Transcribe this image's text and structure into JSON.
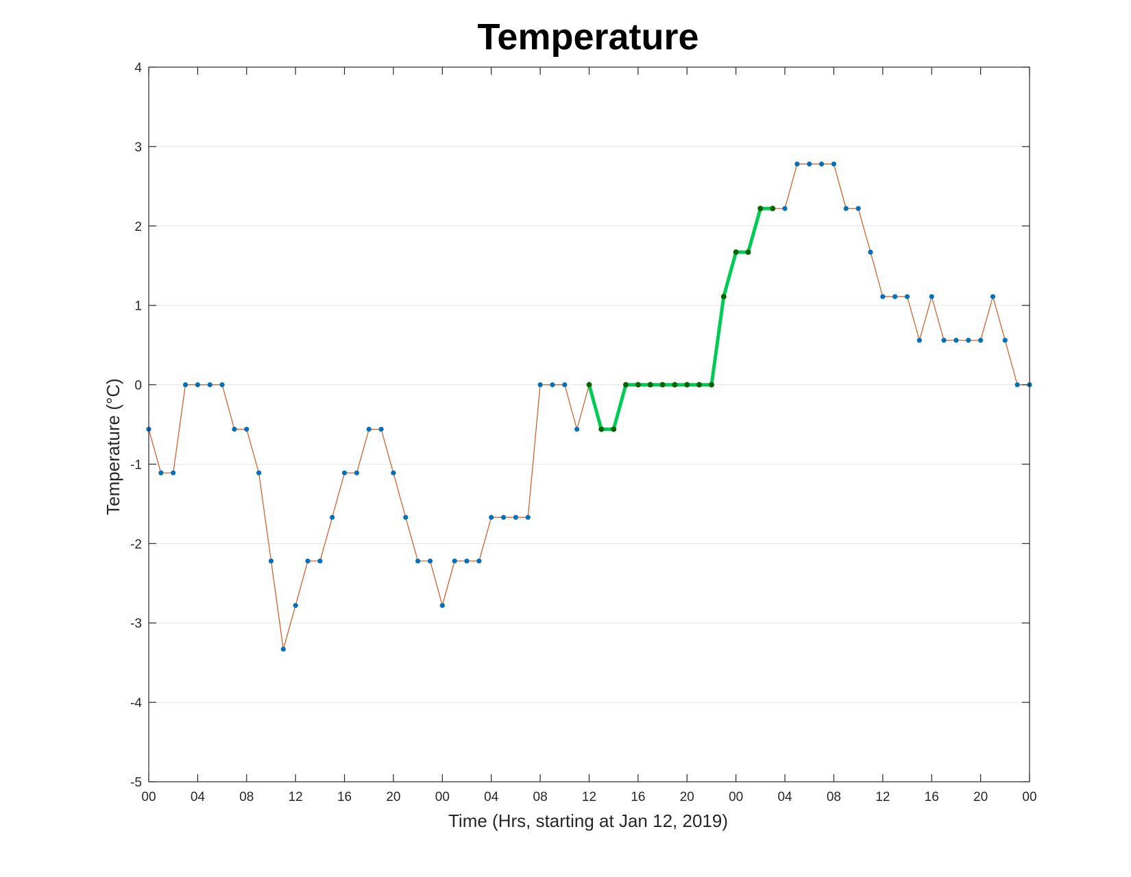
{
  "chart_data": {
    "type": "line",
    "title": "Temperature",
    "xlabel": "Time (Hrs, starting at Jan 12, 2019)",
    "ylabel": "Temperature (°C)",
    "ylim": [
      -5,
      4
    ],
    "xlim_hours": [
      0,
      72
    ],
    "yticks": [
      "-5",
      "-4",
      "-3",
      "-2",
      "-1",
      "0",
      "1",
      "2",
      "3",
      "4"
    ],
    "xtick_labels": [
      "00",
      "04",
      "08",
      "12",
      "16",
      "20",
      "00",
      "04",
      "08",
      "12",
      "16",
      "20",
      "00",
      "04",
      "08",
      "12",
      "16",
      "20",
      "00"
    ],
    "xtick_step_hours": 4,
    "grid": "horizontal",
    "legend": "none",
    "colors": {
      "line": "#d95319",
      "marker": "#0072bd",
      "highlight_line": "#00cc55",
      "highlight_marker": "#006600",
      "grid": "#e6e6e6",
      "axes": "#262626"
    },
    "series": [
      {
        "x": [
          0,
          1,
          2,
          3,
          4,
          5,
          6,
          7,
          8,
          9,
          10,
          11,
          12,
          13,
          14,
          15,
          16,
          17,
          18,
          19,
          20,
          21,
          22,
          23,
          24,
          25,
          26,
          27,
          28,
          29,
          30,
          31,
          32,
          33,
          34,
          35,
          36,
          37,
          38,
          39,
          40,
          41,
          42,
          43,
          44,
          45,
          46,
          47,
          48,
          49,
          50,
          51,
          52,
          53,
          54,
          55,
          56,
          57,
          58,
          59,
          60,
          61,
          62,
          63,
          64,
          65,
          66,
          67,
          68,
          69,
          70,
          71,
          72
        ],
        "y": [
          -0.56,
          -1.11,
          -1.11,
          0,
          0,
          0,
          0,
          -0.56,
          -0.56,
          -1.11,
          -2.22,
          -3.33,
          -2.78,
          -2.22,
          -2.22,
          -1.67,
          -1.11,
          -1.11,
          -0.56,
          -0.56,
          -1.11,
          -1.67,
          -2.22,
          -2.22,
          -2.78,
          -2.22,
          -2.22,
          -2.22,
          -1.67,
          -1.67,
          -1.67,
          -1.67,
          0,
          0,
          0,
          -0.56,
          0,
          -0.56,
          -0.56,
          0,
          0,
          0,
          0,
          0,
          0,
          0,
          0,
          1.11,
          1.67,
          1.67,
          2.22,
          2.22,
          2.22,
          2.78,
          2.78,
          2.78,
          2.78,
          2.22,
          2.22,
          1.67,
          1.11,
          1.11,
          1.11,
          0.56,
          1.11,
          0.56,
          0.56,
          0.56,
          0.56,
          1.11,
          0.56,
          0,
          0
        ]
      },
      {
        "x": [
          36,
          37,
          38,
          39,
          40,
          41,
          42,
          43,
          44,
          45,
          46,
          47,
          48,
          49,
          50,
          51
        ],
        "y": [
          0,
          -0.56,
          -0.56,
          0,
          0,
          0,
          0,
          0,
          0,
          0,
          0,
          1.11,
          1.67,
          1.67,
          2.22,
          2.22
        ]
      }
    ]
  }
}
